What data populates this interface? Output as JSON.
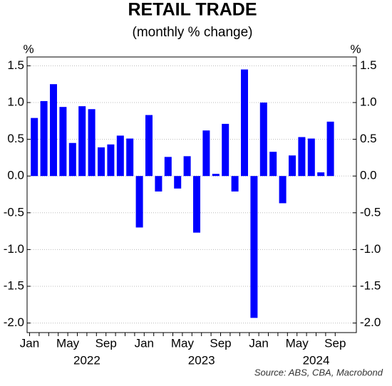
{
  "chart_data": {
    "type": "bar",
    "title": "RETAIL TRADE",
    "subtitle": "(monthly % change)",
    "y_unit": "%",
    "y2_unit": "%",
    "source": "Source: ABS, CBA, Macrobond",
    "color": "#0000ff",
    "grid": true,
    "categories": [
      "Jan",
      null,
      null,
      null,
      "May",
      null,
      null,
      null,
      "Sep",
      null,
      null,
      null,
      "Jan",
      null,
      null,
      null,
      "May",
      null,
      null,
      null,
      "Sep",
      null,
      null,
      null,
      "Jan",
      null,
      null,
      null,
      "May",
      null,
      null,
      null,
      "Sep"
    ],
    "year_labels": [
      "2022",
      "2023",
      "2024"
    ],
    "values": [
      0.79,
      1.02,
      1.25,
      0.94,
      0.45,
      0.95,
      0.91,
      0.39,
      0.43,
      0.55,
      0.51,
      -0.7,
      0.83,
      -0.21,
      0.26,
      -0.17,
      0.27,
      -0.77,
      0.62,
      0.03,
      0.71,
      -0.21,
      1.45,
      -1.93,
      1.0,
      0.33,
      -0.37,
      0.28,
      0.53,
      0.51,
      0.05,
      0.74,
      null
    ],
    "ylim": [
      -2.13,
      1.62
    ],
    "yticks": [
      1.5,
      {
        "value": 1,
        "label": "1.0"
      },
      0.5,
      {
        "value": 0,
        "label": "0.0"
      },
      -0.5,
      {
        "value": -1,
        "label": "-1.0"
      },
      -1.5,
      {
        "value": -2,
        "label": "-2.0"
      }
    ],
    "y2lim": [
      -2.13,
      1.62
    ],
    "y2ticks": [
      1.5,
      {
        "value": 1,
        "label": "1.0"
      },
      0.5,
      {
        "value": 0,
        "label": "0.0"
      },
      -0.5,
      {
        "value": -1,
        "label": "-1.0"
      },
      -1.5,
      {
        "value": -2,
        "label": "-2.0"
      }
    ]
  }
}
